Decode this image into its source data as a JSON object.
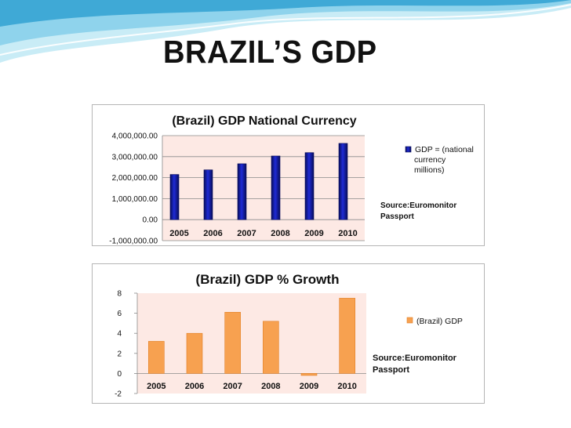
{
  "slide": {
    "title": "BRAZIL’S GDP"
  },
  "colors": {
    "wave_light": "#c9ecf6",
    "wave_mid": "#8fd3ec",
    "wave_dark": "#3fa9d6",
    "plot_bg": "#fde9e4",
    "bar_blue": "#1f2bd6",
    "bar_blue_dark": "#070c5a",
    "bar_orange": "#f7a150",
    "bar_orange_edge": "#e07f25",
    "frame": "#b5b5b5"
  },
  "chart_data": [
    {
      "type": "bar",
      "title": "(Brazil) GDP National Currency",
      "categories": [
        "2005",
        "2006",
        "2007",
        "2008",
        "2009",
        "2010"
      ],
      "series": [
        {
          "name": "GDP = (national currency millions)",
          "legend_lines": [
            "GDP = (national",
            "currency",
            "millions)"
          ],
          "values": [
            2150000,
            2370000,
            2660000,
            3030000,
            3190000,
            3630000
          ]
        }
      ],
      "ylim": [
        -1000000,
        4000000
      ],
      "yticks": [
        -1000000,
        0,
        1000000,
        2000000,
        3000000,
        4000000
      ],
      "ytick_labels": [
        "-1,000,000.00",
        "0.00",
        "1,000,000.00",
        "2,000,000.00",
        "3,000,000.00",
        "4,000,000.00"
      ],
      "grid": true,
      "legend_position": "right",
      "annotation": [
        "Source:Euromonitor",
        "Passport"
      ],
      "xlabel": "",
      "ylabel": ""
    },
    {
      "type": "bar",
      "title": "(Brazil) GDP %  Growth",
      "categories": [
        "2005",
        "2006",
        "2007",
        "2008",
        "2009",
        "2010"
      ],
      "series": [
        {
          "name": "(Brazil) GDP",
          "values": [
            3.2,
            4.0,
            6.1,
            5.2,
            -0.2,
            7.5
          ]
        }
      ],
      "ylim": [
        -2,
        8
      ],
      "yticks": [
        -2,
        0,
        2,
        4,
        6,
        8
      ],
      "ytick_labels": [
        "-2",
        "0",
        "2",
        "4",
        "6",
        "8"
      ],
      "grid": false,
      "legend_position": "right",
      "annotation": [
        "Source:Euromonitor",
        "Passport"
      ],
      "xlabel": "",
      "ylabel": ""
    }
  ]
}
